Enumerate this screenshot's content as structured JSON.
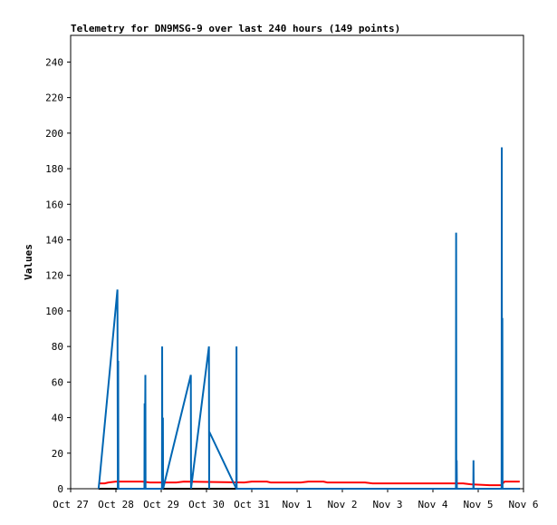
{
  "chart_data": {
    "type": "line",
    "title": "Telemetry for DN9MSG-9 over last 240 hours (149 points)",
    "xlabel": "",
    "ylabel": "Values",
    "ylim": [
      0,
      255
    ],
    "yticks": [
      0,
      20,
      40,
      60,
      80,
      100,
      120,
      140,
      160,
      180,
      200,
      220,
      240
    ],
    "x_axis_units": "hours since Oct 27 00:00",
    "xlim": [
      0,
      240
    ],
    "xticks": [
      {
        "x": 0,
        "label": "Oct 27"
      },
      {
        "x": 24,
        "label": "Oct 28"
      },
      {
        "x": 48,
        "label": "Oct 29"
      },
      {
        "x": 72,
        "label": "Oct 30"
      },
      {
        "x": 96,
        "label": "Oct 31"
      },
      {
        "x": 120,
        "label": "Nov 1"
      },
      {
        "x": 144,
        "label": "Nov 2"
      },
      {
        "x": 168,
        "label": "Nov 3"
      },
      {
        "x": 192,
        "label": "Nov 4"
      },
      {
        "x": 216,
        "label": "Nov 5"
      },
      {
        "x": 240,
        "label": "Nov 6"
      }
    ],
    "grid": false,
    "legend": "none",
    "series": [
      {
        "name": "",
        "color": "#0066b3",
        "points": [
          [
            14.8,
            0
          ],
          [
            15.2,
            4
          ],
          [
            24.8,
            112
          ],
          [
            25.0,
            0
          ],
          [
            25.2,
            72
          ],
          [
            25.3,
            0
          ],
          [
            39.1,
            0
          ],
          [
            39.2,
            48
          ],
          [
            39.3,
            0
          ],
          [
            39.6,
            64
          ],
          [
            39.7,
            0
          ],
          [
            48.4,
            0
          ],
          [
            48.5,
            80
          ],
          [
            48.6,
            0
          ],
          [
            48.9,
            40
          ],
          [
            49.0,
            0
          ],
          [
            63.7,
            64
          ],
          [
            63.8,
            0
          ],
          [
            73.3,
            80
          ],
          [
            73.4,
            0
          ],
          [
            73.5,
            32
          ],
          [
            87.8,
            0
          ],
          [
            87.9,
            80
          ],
          [
            88.0,
            0
          ],
          [
            204.2,
            0
          ],
          [
            204.3,
            144
          ],
          [
            204.4,
            0
          ],
          [
            204.6,
            16
          ],
          [
            204.7,
            0
          ],
          [
            213.4,
            0
          ],
          [
            213.5,
            16
          ],
          [
            213.6,
            0
          ],
          [
            228.4,
            0
          ],
          [
            228.5,
            192
          ],
          [
            228.6,
            0
          ],
          [
            228.8,
            96
          ],
          [
            228.9,
            0
          ],
          [
            238.0,
            0
          ]
        ]
      },
      {
        "name": "",
        "color": "#ff0000",
        "points": [
          [
            14.8,
            3
          ],
          [
            18,
            3
          ],
          [
            20,
            3.5
          ],
          [
            24,
            4
          ],
          [
            38,
            4
          ],
          [
            42,
            3.5
          ],
          [
            56,
            3.5
          ],
          [
            60,
            4
          ],
          [
            92,
            3.5
          ],
          [
            96,
            4
          ],
          [
            104,
            4
          ],
          [
            106,
            3.5
          ],
          [
            122,
            3.5
          ],
          [
            126,
            4
          ],
          [
            134,
            4
          ],
          [
            136,
            3.5
          ],
          [
            156,
            3.5
          ],
          [
            160,
            3
          ],
          [
            204,
            3
          ],
          [
            208,
            3
          ],
          [
            212,
            2.5
          ],
          [
            222,
            2
          ],
          [
            228,
            2
          ],
          [
            230,
            4
          ],
          [
            238,
            4
          ]
        ]
      },
      {
        "name": "",
        "color": "#000000",
        "points": [
          [
            14.8,
            0
          ],
          [
            238.0,
            0
          ]
        ]
      }
    ]
  }
}
